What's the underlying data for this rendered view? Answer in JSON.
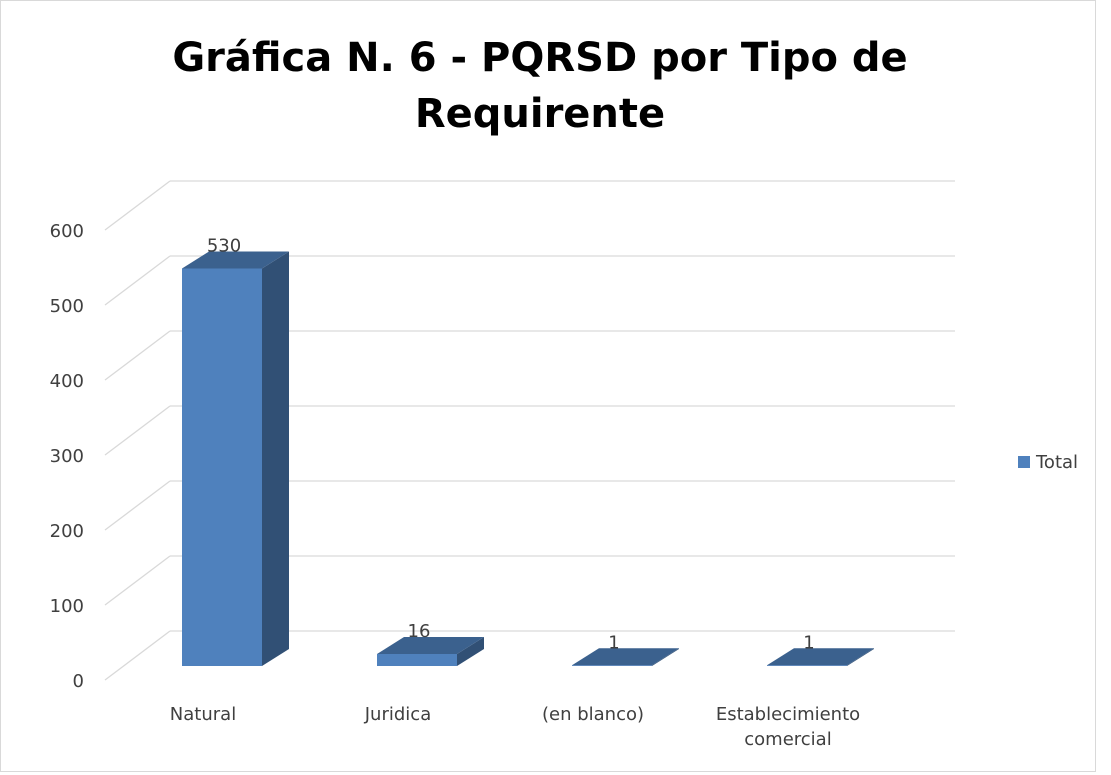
{
  "chart_data": {
    "type": "bar",
    "title": "Gráfica N. 6 - PQRSD por Tipo de Requirente",
    "categories": [
      "Natural",
      "Juridica",
      "(en blanco)",
      "Establecimiento comercial"
    ],
    "series": [
      {
        "name": "Total",
        "color": "#4f81bd",
        "values": [
          530,
          16,
          1,
          1
        ]
      }
    ],
    "ylim": [
      0,
      600
    ],
    "yticks": [
      0,
      100,
      200,
      300,
      400,
      500,
      600
    ],
    "grid": true,
    "legend": "right"
  }
}
